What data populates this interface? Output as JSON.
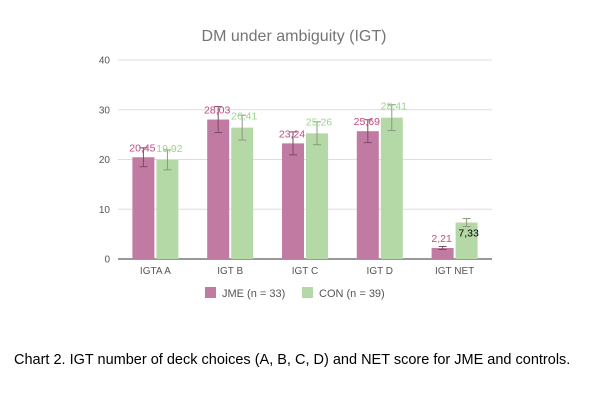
{
  "chart_data": {
    "type": "bar",
    "title": "DM under ambiguity (IGT)",
    "xlabel": "",
    "ylabel": "",
    "ylim": [
      0,
      40
    ],
    "yticks": [
      0,
      10,
      20,
      30,
      40
    ],
    "grid": true,
    "legend_position": "bottom",
    "categories": [
      "IGTA A",
      "IGT B",
      "IGT C",
      "IGT D",
      "IGT NET"
    ],
    "series": [
      {
        "name": "JME (n = 33)",
        "color": "#c17ba3",
        "label_color": "#c2497f",
        "values": [
          20.45,
          28.03,
          23.24,
          25.69,
          2.21
        ],
        "labels": [
          "20,45",
          "28,03",
          "23,24",
          "25,69",
          "2,21"
        ],
        "errors": [
          1.9,
          2.6,
          2.3,
          2.3,
          0.3
        ]
      },
      {
        "name": "CON (n = 39)",
        "color": "#b5d8a7",
        "label_color": "#9cd58c",
        "values": [
          19.92,
          26.41,
          25.26,
          28.41,
          7.33
        ],
        "labels": [
          "19,92",
          "26,41",
          "25,26",
          "28,41",
          "7,33"
        ],
        "errors": [
          2.0,
          2.5,
          2.3,
          2.6,
          0.8
        ]
      }
    ]
  },
  "caption": "Chart 2. IGT number of deck choices (A, B, C, D) and NET score for JME and controls."
}
